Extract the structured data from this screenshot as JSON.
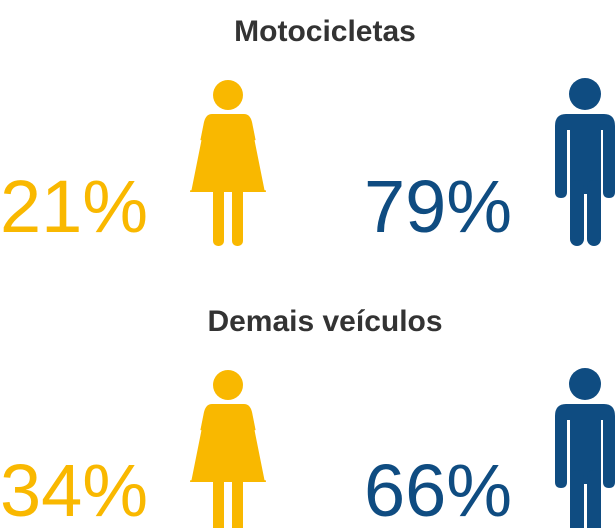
{
  "panels": [
    {
      "title": "Motocicletas",
      "items": [
        {
          "label": "21%",
          "color": "#f9b800"
        },
        {
          "label": "79%",
          "color": "#0f4c81"
        }
      ]
    },
    {
      "title": "Demais veículos",
      "items": [
        {
          "label": "34%",
          "color": "#f9b800"
        },
        {
          "label": "66%",
          "color": "#0f4c81"
        }
      ]
    }
  ]
}
